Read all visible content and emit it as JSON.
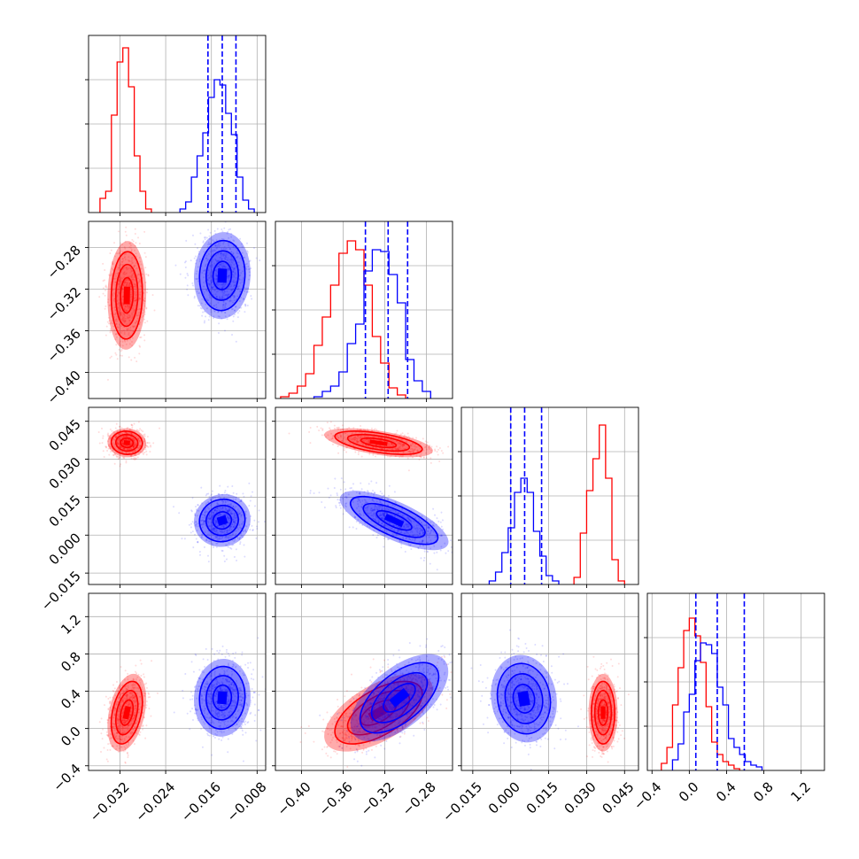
{
  "chart_data": {
    "type": "corner",
    "title": "",
    "series": [
      {
        "name": "",
        "color": "#ff0000"
      },
      {
        "name": "",
        "color": "#0000ff"
      }
    ],
    "grid": true,
    "quantile_lines_color": "#0000ff",
    "params": [
      {
        "range": [
          -0.0375,
          -0.0065
        ],
        "xticks": [
          -0.032,
          -0.024,
          -0.016,
          -0.008
        ],
        "xtick_labels": [
          "−0.032",
          "−0.024",
          "−0.016",
          "−0.008"
        ],
        "quantiles_blue": [
          -0.0166,
          -0.0141,
          -0.0117
        ],
        "hist_red": {
          "x0": -0.0355,
          "w": 0.001,
          "h": [
            0.08,
            0.12,
            0.55,
            0.85,
            0.93,
            0.71,
            0.32,
            0.12,
            0.02
          ]
        },
        "hist_blue": {
          "x0": -0.0215,
          "w": 0.001,
          "h": [
            0.02,
            0.06,
            0.2,
            0.32,
            0.45,
            0.65,
            0.75,
            0.72,
            0.56,
            0.44,
            0.2,
            0.07,
            0.02
          ]
        }
      },
      {
        "range": [
          -0.425,
          -0.255
        ],
        "xticks": [
          -0.4,
          -0.36,
          -0.32,
          -0.28
        ],
        "xtick_labels": [
          "−0.40",
          "−0.36",
          "−0.32",
          "−0.28"
        ],
        "yticks": [
          -0.4,
          -0.36,
          -0.32,
          -0.28
        ],
        "ytick_labels": [
          "−0.40",
          "−0.36",
          "−0.32",
          "−0.28"
        ],
        "quantiles_blue": [
          -0.3386,
          -0.3168,
          -0.2981
        ],
        "hist_red": {
          "x0": -0.42,
          "w": 0.008,
          "h": [
            0.01,
            0.03,
            0.07,
            0.14,
            0.3,
            0.46,
            0.64,
            0.82,
            0.89,
            0.84,
            0.64,
            0.35,
            0.2,
            0.06,
            0.02
          ]
        },
        "hist_blue": {
          "x0": -0.388,
          "w": 0.008,
          "h": [
            0.01,
            0.04,
            0.07,
            0.15,
            0.31,
            0.42,
            0.72,
            0.84,
            0.83,
            0.7,
            0.54,
            0.22,
            0.1,
            0.04
          ]
        }
      },
      {
        "range": [
          -0.0195,
          0.0505
        ],
        "xticks": [
          -0.015,
          0.0,
          0.015,
          0.03,
          0.045
        ],
        "xtick_labels": [
          "−0.015",
          "0.000",
          "0.015",
          "0.030",
          "0.045"
        ],
        "yticks": [
          -0.015,
          0.0,
          0.015,
          0.03,
          0.045
        ],
        "ytick_labels": [
          "−0.015",
          "0.000",
          "0.015",
          "0.030",
          "0.045"
        ],
        "quantiles_blue": [
          0.0,
          0.0055,
          0.0122
        ],
        "hist_blue": {
          "x0": -0.0085,
          "w": 0.0025,
          "h": [
            0.02,
            0.07,
            0.18,
            0.32,
            0.52,
            0.6,
            0.52,
            0.3,
            0.16,
            0.05,
            0.02
          ]
        },
        "hist_red": {
          "x0": 0.025,
          "w": 0.0025,
          "h": [
            0.04,
            0.29,
            0.53,
            0.71,
            0.9,
            0.6,
            0.14,
            0.02
          ]
        }
      },
      {
        "range": [
          -0.45,
          1.45
        ],
        "xticks": [
          -0.4,
          0.0,
          0.4,
          0.8,
          1.2
        ],
        "xtick_labels": [
          "−0.4",
          "0.0",
          "0.4",
          "0.8",
          "1.2"
        ],
        "yticks": [
          -0.4,
          0.0,
          0.4,
          0.8,
          1.2
        ],
        "ytick_labels": [
          "−0.4",
          "0.0",
          "0.4",
          "0.8",
          "1.2"
        ],
        "quantiles_blue": [
          0.07,
          0.3,
          0.59
        ],
        "hist_red": {
          "x0": -0.3,
          "w": 0.06,
          "h": [
            0.04,
            0.13,
            0.37,
            0.58,
            0.79,
            0.86,
            0.76,
            0.61,
            0.36,
            0.16,
            0.09,
            0.05,
            0.03,
            0.01
          ]
        },
        "hist_blue": {
          "x0": -0.18,
          "w": 0.06,
          "h": [
            0.06,
            0.15,
            0.33,
            0.43,
            0.62,
            0.72,
            0.71,
            0.66,
            0.47,
            0.37,
            0.18,
            0.13,
            0.09,
            0.05,
            0.03,
            0.02
          ]
        }
      }
    ],
    "pairs": [
      {
        "row": 1,
        "col": 0,
        "red": {
          "mean": [
            -0.0308,
            -0.326
          ],
          "sd": [
            0.0013,
            0.02
          ],
          "rho": 0.05
        },
        "blue": {
          "mean": [
            -0.0141,
            -0.307
          ],
          "sd": [
            0.0019,
            0.016
          ],
          "rho": 0.05
        }
      },
      {
        "row": 2,
        "col": 0,
        "red": {
          "mean": [
            -0.0308,
            0.0365
          ],
          "sd": [
            0.0013,
            0.0022
          ],
          "rho": -0.05
        },
        "blue": {
          "mean": [
            -0.0141,
            0.0058
          ],
          "sd": [
            0.0019,
            0.004
          ],
          "rho": 0.05
        }
      },
      {
        "row": 2,
        "col": 1,
        "red": {
          "mean": [
            -0.326,
            0.0365
          ],
          "sd": [
            0.02,
            0.0022
          ],
          "rho": -0.55
        },
        "blue": {
          "mean": [
            -0.311,
            0.0058
          ],
          "sd": [
            0.02,
            0.0045
          ],
          "rho": -0.72
        }
      },
      {
        "row": 3,
        "col": 0,
        "red": {
          "mean": [
            -0.0308,
            0.17
          ],
          "sd": [
            0.0013,
            0.16
          ],
          "rho": 0.35
        },
        "blue": {
          "mean": [
            -0.0141,
            0.33
          ],
          "sd": [
            0.0019,
            0.16
          ],
          "rho": 0.05
        }
      },
      {
        "row": 3,
        "col": 1,
        "red": {
          "mean": [
            -0.326,
            0.17
          ],
          "sd": [
            0.02,
            0.16
          ],
          "rho": 0.6
        },
        "blue": {
          "mean": [
            -0.306,
            0.33
          ],
          "sd": [
            0.018,
            0.18
          ],
          "rho": 0.6
        }
      },
      {
        "row": 3,
        "col": 2,
        "red": {
          "mean": [
            0.0365,
            0.17
          ],
          "sd": [
            0.0022,
            0.16
          ],
          "rho": 0.0
        },
        "blue": {
          "mean": [
            0.0052,
            0.32
          ],
          "sd": [
            0.005,
            0.18
          ],
          "rho": -0.1
        }
      }
    ]
  }
}
